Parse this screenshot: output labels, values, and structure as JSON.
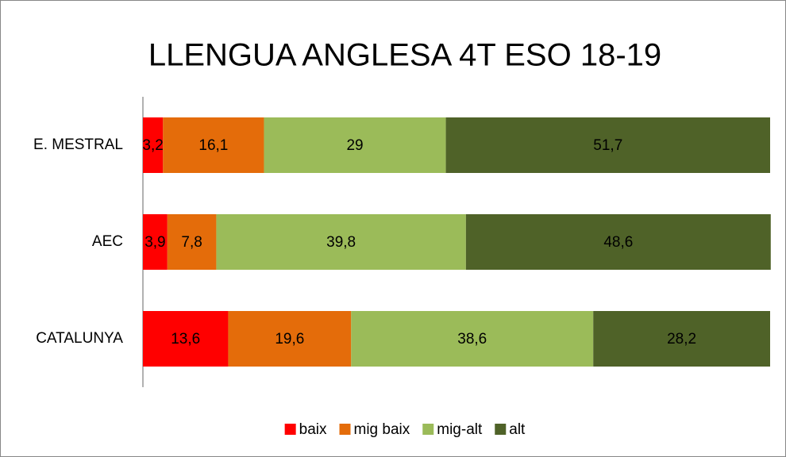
{
  "chart_data": {
    "type": "stacked_bar_horizontal",
    "title": "LLENGUA  ANGLESA 4T ESO  18-19",
    "categories": [
      "E. MESTRAL",
      "AEC",
      "CATALUNYA"
    ],
    "series": [
      {
        "name": "baix",
        "color": "#ff0000",
        "values": [
          3.2,
          3.9,
          13.6
        ],
        "value_labels": [
          "3,2",
          "3,9",
          "13,6"
        ]
      },
      {
        "name": "mig baix",
        "color": "#e46c0a",
        "values": [
          16.1,
          7.8,
          19.6
        ],
        "value_labels": [
          "16,1",
          "7,8",
          "19,6"
        ]
      },
      {
        "name": "mig-alt",
        "color": "#9bbb59",
        "values": [
          29,
          39.8,
          38.6
        ],
        "value_labels": [
          "29",
          "39,8",
          "38,6"
        ]
      },
      {
        "name": "alt",
        "color": "#4f6228",
        "values": [
          51.7,
          48.6,
          28.2
        ],
        "value_labels": [
          "51,7",
          "48,6",
          "28,2"
        ]
      }
    ],
    "xlim": [
      0,
      100
    ],
    "legend": "bottom"
  }
}
